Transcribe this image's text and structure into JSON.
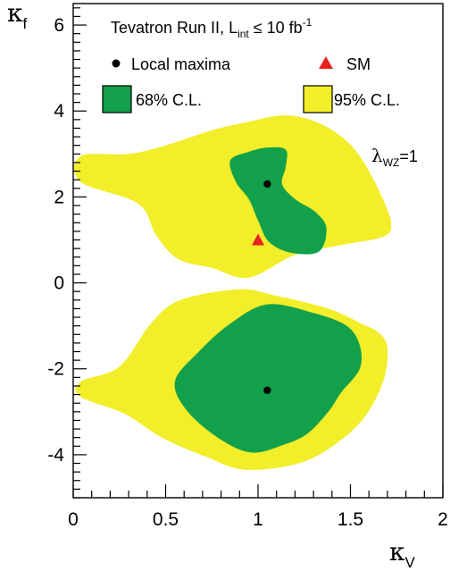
{
  "chart_data": {
    "type": "contour",
    "xlim": [
      0,
      2
    ],
    "ylim": [
      -5,
      6.5
    ],
    "x_ticks": [
      "0",
      "0.5",
      "1",
      "1.5",
      "2"
    ],
    "y_ticks": [
      "-4",
      "-2",
      "0",
      "2",
      "4",
      "6"
    ],
    "xlabel": {
      "symbol": "κ",
      "sub": "V"
    },
    "ylabel": {
      "symbol": "κ",
      "sub": "f"
    },
    "legend": {
      "title_prefix": "Tevatron Run II, L",
      "title_sub": "int",
      "title_mid": " ≤ 10 fb",
      "title_sup": "-1",
      "maxima_label": "Local maxima",
      "sm_label": "SM",
      "cl68_label": "68% C.L.",
      "cl95_label": "95% C.L."
    },
    "annotation": {
      "symbol": "λ",
      "sub": "WZ",
      "rest": "=1"
    },
    "colors": {
      "cl95": "#f2ee2a",
      "cl68": "#12a04a",
      "sm": "#e8231f",
      "maxima": "#000000"
    },
    "local_maxima": [
      [
        1.05,
        2.3
      ],
      [
        1.05,
        -2.5
      ]
    ],
    "sm_point": [
      1.0,
      1.0
    ],
    "regions": [
      {
        "level": "95%",
        "points": [
          [
            0.04,
            2.95
          ],
          [
            0.3,
            3.0
          ],
          [
            0.5,
            3.2
          ],
          [
            0.75,
            3.55
          ],
          [
            0.95,
            3.75
          ],
          [
            1.15,
            3.9
          ],
          [
            1.33,
            3.72
          ],
          [
            1.48,
            3.3
          ],
          [
            1.58,
            2.75
          ],
          [
            1.67,
            2.0
          ],
          [
            1.72,
            1.4
          ],
          [
            1.68,
            1.08
          ],
          [
            1.45,
            0.88
          ],
          [
            1.2,
            0.65
          ],
          [
            0.95,
            0.12
          ],
          [
            0.75,
            0.35
          ],
          [
            0.57,
            0.55
          ],
          [
            0.45,
            1.1
          ],
          [
            0.35,
            1.85
          ],
          [
            0.04,
            2.35
          ]
        ]
      },
      {
        "level": "95%",
        "points": [
          [
            0.04,
            -2.3
          ],
          [
            0.25,
            -1.95
          ],
          [
            0.42,
            -0.95
          ],
          [
            0.58,
            -0.4
          ],
          [
            0.9,
            -0.15
          ],
          [
            1.1,
            -0.3
          ],
          [
            1.38,
            -0.6
          ],
          [
            1.56,
            -0.95
          ],
          [
            1.65,
            -1.15
          ],
          [
            1.7,
            -1.5
          ],
          [
            1.68,
            -2.25
          ],
          [
            1.58,
            -3.1
          ],
          [
            1.42,
            -3.75
          ],
          [
            1.22,
            -4.2
          ],
          [
            0.93,
            -4.35
          ],
          [
            0.72,
            -4.05
          ],
          [
            0.48,
            -3.6
          ],
          [
            0.28,
            -3.05
          ],
          [
            0.04,
            -2.65
          ]
        ]
      },
      {
        "level": "68%",
        "points": [
          [
            0.85,
            2.85
          ],
          [
            0.95,
            3.05
          ],
          [
            1.05,
            3.15
          ],
          [
            1.15,
            3.1
          ],
          [
            1.15,
            2.7
          ],
          [
            1.13,
            2.3
          ],
          [
            1.2,
            1.95
          ],
          [
            1.31,
            1.65
          ],
          [
            1.37,
            1.28
          ],
          [
            1.33,
            0.73
          ],
          [
            1.18,
            0.7
          ],
          [
            1.06,
            0.95
          ],
          [
            1.0,
            1.45
          ],
          [
            0.95,
            1.95
          ],
          [
            0.88,
            2.35
          ]
        ]
      },
      {
        "level": "68%",
        "points": [
          [
            0.55,
            -2.3
          ],
          [
            0.68,
            -1.6
          ],
          [
            0.85,
            -0.95
          ],
          [
            1.05,
            -0.5
          ],
          [
            1.3,
            -0.7
          ],
          [
            1.48,
            -1.0
          ],
          [
            1.55,
            -1.45
          ],
          [
            1.55,
            -2.0
          ],
          [
            1.45,
            -2.55
          ],
          [
            1.38,
            -3.0
          ],
          [
            1.27,
            -3.5
          ],
          [
            1.15,
            -3.75
          ],
          [
            0.97,
            -3.95
          ],
          [
            0.8,
            -3.65
          ],
          [
            0.62,
            -3.0
          ]
        ]
      }
    ]
  }
}
